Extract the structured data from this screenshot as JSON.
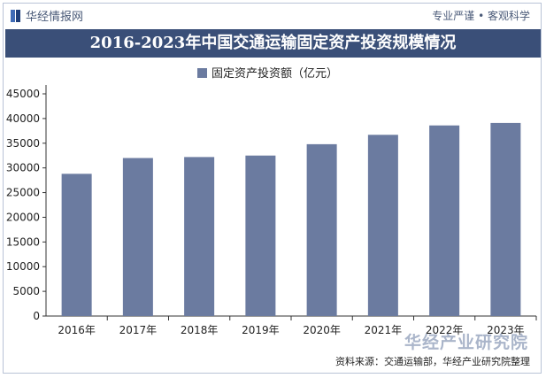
{
  "header": {
    "brand": "华经情报网",
    "slogan": "专业严谨 • 客观科学",
    "watermark": "华经产业研究院",
    "source": "资料来源：交通运输部，华经产业研究院整理"
  },
  "colors": {
    "bar": "#6b7ba0",
    "title_bg": "#3a4f78"
  },
  "chart_data": {
    "type": "bar",
    "title": "2016-2023年中国交通运输固定资产投资规模情况",
    "categories": [
      "2016年",
      "2017年",
      "2018年",
      "2019年",
      "2020年",
      "2021年",
      "2022年",
      "2023年"
    ],
    "series": [
      {
        "name": "固定资产投资额（亿元）",
        "values": [
          28800,
          32000,
          32200,
          32500,
          34800,
          36700,
          38600,
          39100
        ]
      }
    ],
    "ylim": [
      0,
      45000
    ],
    "yticks": [
      0,
      5000,
      10000,
      15000,
      20000,
      25000,
      30000,
      35000,
      40000,
      45000
    ],
    "xlabel": "",
    "ylabel": "",
    "legend": "top-center",
    "grid": false
  }
}
